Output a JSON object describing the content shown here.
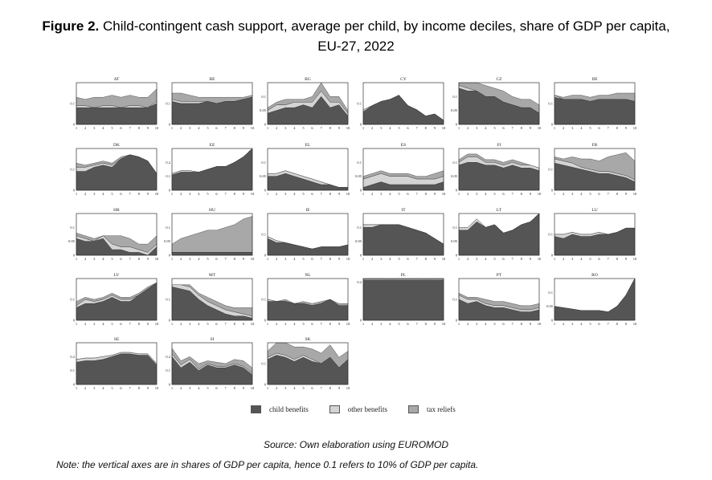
{
  "figure": {
    "label": "Figure 2.",
    "title": "Child-contingent cash support, average per child, by income deciles, share of GDP per capita, EU-27, 2022",
    "source": "Source: Own elaboration using EUROMOD",
    "note": "Note: the vertical axes are in shares of GDP per capita, hence 0.1 refers to 10% of GDP per capita."
  },
  "colors": {
    "child": "#555555",
    "other": "#d4d4d4",
    "tax": "#a8a8a8"
  },
  "legend": [
    {
      "key": "child",
      "label": "child benefits"
    },
    {
      "key": "other",
      "label": "other benefits"
    },
    {
      "key": "tax",
      "label": "tax reliefs"
    }
  ],
  "chart_data": {
    "type": "area",
    "x": [
      1,
      2,
      3,
      4,
      5,
      6,
      7,
      8,
      9,
      10
    ],
    "xlabel": "income deciles",
    "ylabel": "share of GDP per capita",
    "panels": [
      {
        "country": "AT",
        "ymax": 0.2,
        "yticks": [
          0,
          0.1
        ],
        "child": [
          0.08,
          0.08,
          0.08,
          0.08,
          0.08,
          0.08,
          0.08,
          0.08,
          0.08,
          0.1
        ],
        "other": [
          0.01,
          0.01,
          0,
          0.01,
          0.01,
          0,
          0.01,
          0.01,
          0,
          0.01
        ],
        "tax": [
          0.04,
          0.03,
          0.05,
          0.04,
          0.05,
          0.05,
          0.05,
          0.04,
          0.05,
          0.06
        ]
      },
      {
        "country": "BE",
        "ymax": 0.2,
        "yticks": [
          0,
          0.1
        ],
        "child": [
          0.11,
          0.1,
          0.1,
          0.1,
          0.11,
          0.1,
          0.11,
          0.11,
          0.12,
          0.13
        ],
        "other": [
          0.01,
          0.01,
          0.01,
          0.01,
          0,
          0,
          0,
          0,
          0,
          0
        ],
        "tax": [
          0.03,
          0.04,
          0.03,
          0.02,
          0.02,
          0.03,
          0.02,
          0.02,
          0.01,
          0.01
        ]
      },
      {
        "country": "BG",
        "ymax": 0.15,
        "yticks": [
          0,
          0.05,
          0.1
        ],
        "child": [
          0.04,
          0.05,
          0.06,
          0.06,
          0.07,
          0.06,
          0.1,
          0.06,
          0.07,
          0.03
        ],
        "other": [
          0.01,
          0.02,
          0.01,
          0.02,
          0.01,
          0.02,
          0.02,
          0.02,
          0.01,
          0.01
        ],
        "tax": [
          0.01,
          0.01,
          0.02,
          0.01,
          0.01,
          0.02,
          0.03,
          0.02,
          0.02,
          0.01
        ]
      },
      {
        "country": "CY",
        "ymax": 0.2,
        "yticks": [
          0,
          0.1
        ],
        "child": [
          0.06,
          0.09,
          0.11,
          0.12,
          0.14,
          0.09,
          0.07,
          0.04,
          0.05,
          0.02
        ],
        "other": [
          0.01,
          0,
          0,
          0,
          0,
          0,
          0,
          0,
          0,
          0
        ],
        "tax": [
          0,
          0,
          0,
          0,
          0,
          0,
          0,
          0,
          0,
          0
        ]
      },
      {
        "country": "CZ",
        "ymax": 0.15,
        "yticks": [
          0,
          0.05,
          0.1
        ],
        "child": [
          0.13,
          0.12,
          0.12,
          0.1,
          0.1,
          0.08,
          0.07,
          0.06,
          0.06,
          0.04
        ],
        "other": [
          0.01,
          0.01,
          0,
          0,
          0,
          0,
          0,
          0,
          0,
          0
        ],
        "tax": [
          0.01,
          0.02,
          0.03,
          0.04,
          0.03,
          0.04,
          0.03,
          0.03,
          0.03,
          0.03
        ]
      },
      {
        "country": "DE",
        "ymax": 0.2,
        "yticks": [
          0,
          0.1
        ],
        "child": [
          0.13,
          0.12,
          0.12,
          0.12,
          0.11,
          0.12,
          0.12,
          0.12,
          0.12,
          0.11
        ],
        "other": [
          0.01,
          0,
          0,
          0,
          0,
          0,
          0,
          0,
          0,
          0
        ],
        "tax": [
          0,
          0.01,
          0.02,
          0.02,
          0.02,
          0.02,
          0.02,
          0.03,
          0.03,
          0.04
        ]
      },
      {
        "country": "DK",
        "ymax": 0.2,
        "yticks": [
          0,
          0.1
        ],
        "child": [
          0.09,
          0.09,
          0.11,
          0.12,
          0.11,
          0.15,
          0.17,
          0.16,
          0.14,
          0.08
        ],
        "other": [
          0.02,
          0.02,
          0.01,
          0.01,
          0.01,
          0,
          0,
          0,
          0,
          0
        ],
        "tax": [
          0.02,
          0.01,
          0.01,
          0.01,
          0.01,
          0.01,
          0,
          0,
          0,
          0
        ]
      },
      {
        "country": "EE",
        "ymax": 0.3,
        "yticks": [
          0,
          0.1,
          0.2
        ],
        "child": [
          0.11,
          0.13,
          0.13,
          0.13,
          0.15,
          0.17,
          0.17,
          0.2,
          0.24,
          0.3
        ],
        "other": [
          0.01,
          0.01,
          0.01,
          0,
          0,
          0,
          0,
          0,
          0,
          0
        ],
        "tax": [
          0,
          0,
          0,
          0,
          0,
          0,
          0,
          0,
          0,
          0
        ]
      },
      {
        "country": "EL",
        "ymax": 0.15,
        "yticks": [
          0,
          0.05,
          0.1
        ],
        "child": [
          0.05,
          0.05,
          0.06,
          0.05,
          0.04,
          0.03,
          0.02,
          0.02,
          0.01,
          0.01
        ],
        "other": [
          0.01,
          0.01,
          0.01,
          0.01,
          0.01,
          0.01,
          0.01,
          0,
          0,
          0
        ],
        "tax": [
          0,
          0,
          0,
          0,
          0,
          0,
          0,
          0,
          0,
          0
        ]
      },
      {
        "country": "ES",
        "ymax": 0.15,
        "yticks": [
          0,
          0.05,
          0.1
        ],
        "child": [
          0.01,
          0.02,
          0.03,
          0.02,
          0.02,
          0.02,
          0.02,
          0.02,
          0.02,
          0.03
        ],
        "other": [
          0.03,
          0.03,
          0.03,
          0.03,
          0.03,
          0.03,
          0.02,
          0.02,
          0.02,
          0.02
        ],
        "tax": [
          0.01,
          0.01,
          0.01,
          0.01,
          0.01,
          0.01,
          0.01,
          0.01,
          0.02,
          0.02
        ]
      },
      {
        "country": "FI",
        "ymax": 0.15,
        "yticks": [
          0,
          0.05,
          0.1
        ],
        "child": [
          0.09,
          0.1,
          0.1,
          0.09,
          0.09,
          0.08,
          0.09,
          0.08,
          0.08,
          0.07
        ],
        "other": [
          0.01,
          0.02,
          0.02,
          0.01,
          0.01,
          0.01,
          0.01,
          0.01,
          0.01,
          0.01
        ],
        "tax": [
          0.01,
          0.01,
          0.01,
          0.01,
          0.01,
          0.01,
          0.01,
          0.01,
          0,
          0
        ]
      },
      {
        "country": "FR",
        "ymax": 0.2,
        "yticks": [
          0,
          0.1
        ],
        "child": [
          0.13,
          0.12,
          0.11,
          0.1,
          0.09,
          0.08,
          0.08,
          0.07,
          0.06,
          0.04
        ],
        "other": [
          0.02,
          0.02,
          0.02,
          0.01,
          0.01,
          0.01,
          0.01,
          0.01,
          0.01,
          0.01
        ],
        "tax": [
          0.01,
          0.01,
          0.03,
          0.04,
          0.05,
          0.05,
          0.07,
          0.09,
          0.11,
          0.09
        ]
      },
      {
        "country": "HR",
        "ymax": 0.15,
        "yticks": [
          0,
          0.05,
          0.1
        ],
        "child": [
          0.06,
          0.05,
          0.05,
          0.06,
          0.02,
          0.02,
          0.01,
          0.01,
          0,
          0.03
        ],
        "other": [
          0.01,
          0.01,
          0,
          0.01,
          0.02,
          0.01,
          0.02,
          0.01,
          0.01,
          0.01
        ],
        "tax": [
          0.01,
          0.01,
          0.01,
          0,
          0.03,
          0.04,
          0.03,
          0.02,
          0.03,
          0.03
        ]
      },
      {
        "country": "HU",
        "ymax": 0.15,
        "yticks": [
          0,
          0.05,
          0.1
        ],
        "child": [
          0.01,
          0.01,
          0.01,
          0.01,
          0.01,
          0.01,
          0.01,
          0.01,
          0.01,
          0.01
        ],
        "other": [
          0,
          0,
          0,
          0,
          0,
          0,
          0,
          0,
          0,
          0
        ],
        "tax": [
          0.03,
          0.05,
          0.06,
          0.07,
          0.08,
          0.08,
          0.09,
          0.1,
          0.12,
          0.13
        ]
      },
      {
        "country": "IE",
        "ymax": 0.2,
        "yticks": [
          0,
          0.1
        ],
        "child": [
          0.08,
          0.06,
          0.06,
          0.05,
          0.04,
          0.03,
          0.04,
          0.04,
          0.04,
          0.05
        ],
        "other": [
          0.01,
          0.01,
          0,
          0,
          0,
          0,
          0,
          0,
          0,
          0
        ],
        "tax": [
          0,
          0,
          0,
          0,
          0,
          0,
          0,
          0,
          0,
          0
        ]
      },
      {
        "country": "IT",
        "ymax": 0.15,
        "yticks": [
          0,
          0.05,
          0.1
        ],
        "child": [
          0.1,
          0.1,
          0.11,
          0.11,
          0.11,
          0.1,
          0.09,
          0.08,
          0.06,
          0.04
        ],
        "other": [
          0.01,
          0.01,
          0,
          0,
          0,
          0,
          0,
          0,
          0,
          0
        ],
        "tax": [
          0,
          0,
          0,
          0,
          0,
          0,
          0,
          0,
          0,
          0
        ]
      },
      {
        "country": "LT",
        "ymax": 0.15,
        "yticks": [
          0,
          0.05,
          0.1
        ],
        "child": [
          0.09,
          0.09,
          0.12,
          0.1,
          0.11,
          0.08,
          0.09,
          0.11,
          0.12,
          0.15
        ],
        "other": [
          0.01,
          0.01,
          0.01,
          0,
          0,
          0,
          0,
          0,
          0,
          0
        ],
        "tax": [
          0,
          0,
          0,
          0,
          0,
          0,
          0,
          0,
          0,
          0
        ]
      },
      {
        "country": "LU",
        "ymax": 0.2,
        "yticks": [
          0,
          0.1
        ],
        "child": [
          0.09,
          0.08,
          0.1,
          0.09,
          0.09,
          0.1,
          0.1,
          0.11,
          0.13,
          0.13
        ],
        "other": [
          0.01,
          0.02,
          0.01,
          0.01,
          0.01,
          0.01,
          0,
          0,
          0,
          0
        ],
        "tax": [
          0,
          0,
          0,
          0,
          0,
          0,
          0,
          0,
          0,
          0
        ]
      },
      {
        "country": "LV",
        "ymax": 0.2,
        "yticks": [
          0,
          0.1
        ],
        "child": [
          0.06,
          0.08,
          0.08,
          0.09,
          0.11,
          0.09,
          0.09,
          0.12,
          0.15,
          0.18
        ],
        "other": [
          0.01,
          0.02,
          0.01,
          0.01,
          0.01,
          0.01,
          0.01,
          0,
          0,
          0
        ],
        "tax": [
          0.02,
          0.01,
          0.01,
          0.01,
          0.01,
          0.01,
          0.01,
          0.01,
          0.01,
          0
        ]
      },
      {
        "country": "MT",
        "ymax": 0.2,
        "yticks": [
          0,
          0.1
        ],
        "child": [
          0.16,
          0.15,
          0.14,
          0.1,
          0.07,
          0.05,
          0.03,
          0.02,
          0.02,
          0.01
        ],
        "other": [
          0.01,
          0.02,
          0.02,
          0.02,
          0.02,
          0.02,
          0.02,
          0.02,
          0.01,
          0.01
        ],
        "tax": [
          0,
          0,
          0.01,
          0.01,
          0.02,
          0.02,
          0.02,
          0.02,
          0.03,
          0.04
        ]
      },
      {
        "country": "NL",
        "ymax": 0.2,
        "yticks": [
          0,
          0.1
        ],
        "child": [
          0.09,
          0.09,
          0.09,
          0.08,
          0.08,
          0.07,
          0.08,
          0.1,
          0.07,
          0.07
        ],
        "other": [
          0.01,
          0,
          0,
          0,
          0,
          0,
          0,
          0,
          0,
          0
        ],
        "tax": [
          0,
          0,
          0.01,
          0,
          0.01,
          0.01,
          0.01,
          0,
          0.01,
          0.01
        ]
      },
      {
        "country": "PL",
        "ymax": 0.22,
        "yticks": [
          0,
          0.2
        ],
        "child": [
          0.21,
          0.21,
          0.21,
          0.21,
          0.21,
          0.21,
          0.21,
          0.21,
          0.21,
          0.21
        ],
        "other": [
          0.005,
          0.005,
          0.005,
          0.005,
          0.005,
          0.005,
          0.005,
          0.005,
          0.005,
          0.005
        ],
        "tax": [
          0.003,
          0.005,
          0.008,
          0.002,
          0.006,
          0.004,
          0.008,
          0.003,
          0.005,
          0.004
        ]
      },
      {
        "country": "PT",
        "ymax": 0.2,
        "yticks": [
          0,
          0.1
        ],
        "child": [
          0.1,
          0.08,
          0.09,
          0.07,
          0.06,
          0.06,
          0.05,
          0.04,
          0.04,
          0.05
        ],
        "other": [
          0.02,
          0.02,
          0.01,
          0.01,
          0.01,
          0.01,
          0.01,
          0.01,
          0.01,
          0.01
        ],
        "tax": [
          0.01,
          0.01,
          0.01,
          0.02,
          0.02,
          0.02,
          0.02,
          0.02,
          0.02,
          0.02
        ]
      },
      {
        "country": "RO",
        "ymax": 0.15,
        "yticks": [
          0,
          0.05,
          0.1
        ],
        "child": [
          0.05,
          0.045,
          0.04,
          0.035,
          0.035,
          0.035,
          0.03,
          0.05,
          0.09,
          0.15
        ],
        "other": [
          0,
          0,
          0,
          0,
          0,
          0,
          0,
          0,
          0,
          0
        ],
        "tax": [
          0,
          0,
          0,
          0,
          0,
          0,
          0,
          0,
          0,
          0
        ]
      },
      {
        "country": "SE",
        "ymax": 0.3,
        "yticks": [
          0,
          0.1,
          0.2
        ],
        "child": [
          0.16,
          0.17,
          0.17,
          0.18,
          0.2,
          0.22,
          0.22,
          0.21,
          0.21,
          0.14
        ],
        "other": [
          0.02,
          0.02,
          0.02,
          0.02,
          0.01,
          0.01,
          0.01,
          0.01,
          0.01,
          0.01
        ],
        "tax": [
          0,
          0,
          0,
          0,
          0,
          0,
          0,
          0,
          0,
          0
        ]
      },
      {
        "country": "SI",
        "ymax": 0.3,
        "yticks": [
          0,
          0.1,
          0.2
        ],
        "child": [
          0.2,
          0.12,
          0.16,
          0.1,
          0.14,
          0.12,
          0.12,
          0.14,
          0.12,
          0.07
        ],
        "other": [
          0.02,
          0.02,
          0.02,
          0.01,
          0.01,
          0.01,
          0.01,
          0.01,
          0.01,
          0.01
        ],
        "tax": [
          0.04,
          0.03,
          0.02,
          0.04,
          0.02,
          0.03,
          0.02,
          0.03,
          0.04,
          0.04
        ]
      },
      {
        "country": "SK",
        "ymax": 0.2,
        "yticks": [
          0,
          0.1
        ],
        "child": [
          0.12,
          0.14,
          0.13,
          0.11,
          0.13,
          0.11,
          0.1,
          0.13,
          0.08,
          0.12
        ],
        "other": [
          0.01,
          0.01,
          0.01,
          0.01,
          0.01,
          0.01,
          0,
          0,
          0,
          0
        ],
        "tax": [
          0.03,
          0.05,
          0.06,
          0.06,
          0.04,
          0.05,
          0.05,
          0.06,
          0.05,
          0.04
        ]
      }
    ]
  }
}
